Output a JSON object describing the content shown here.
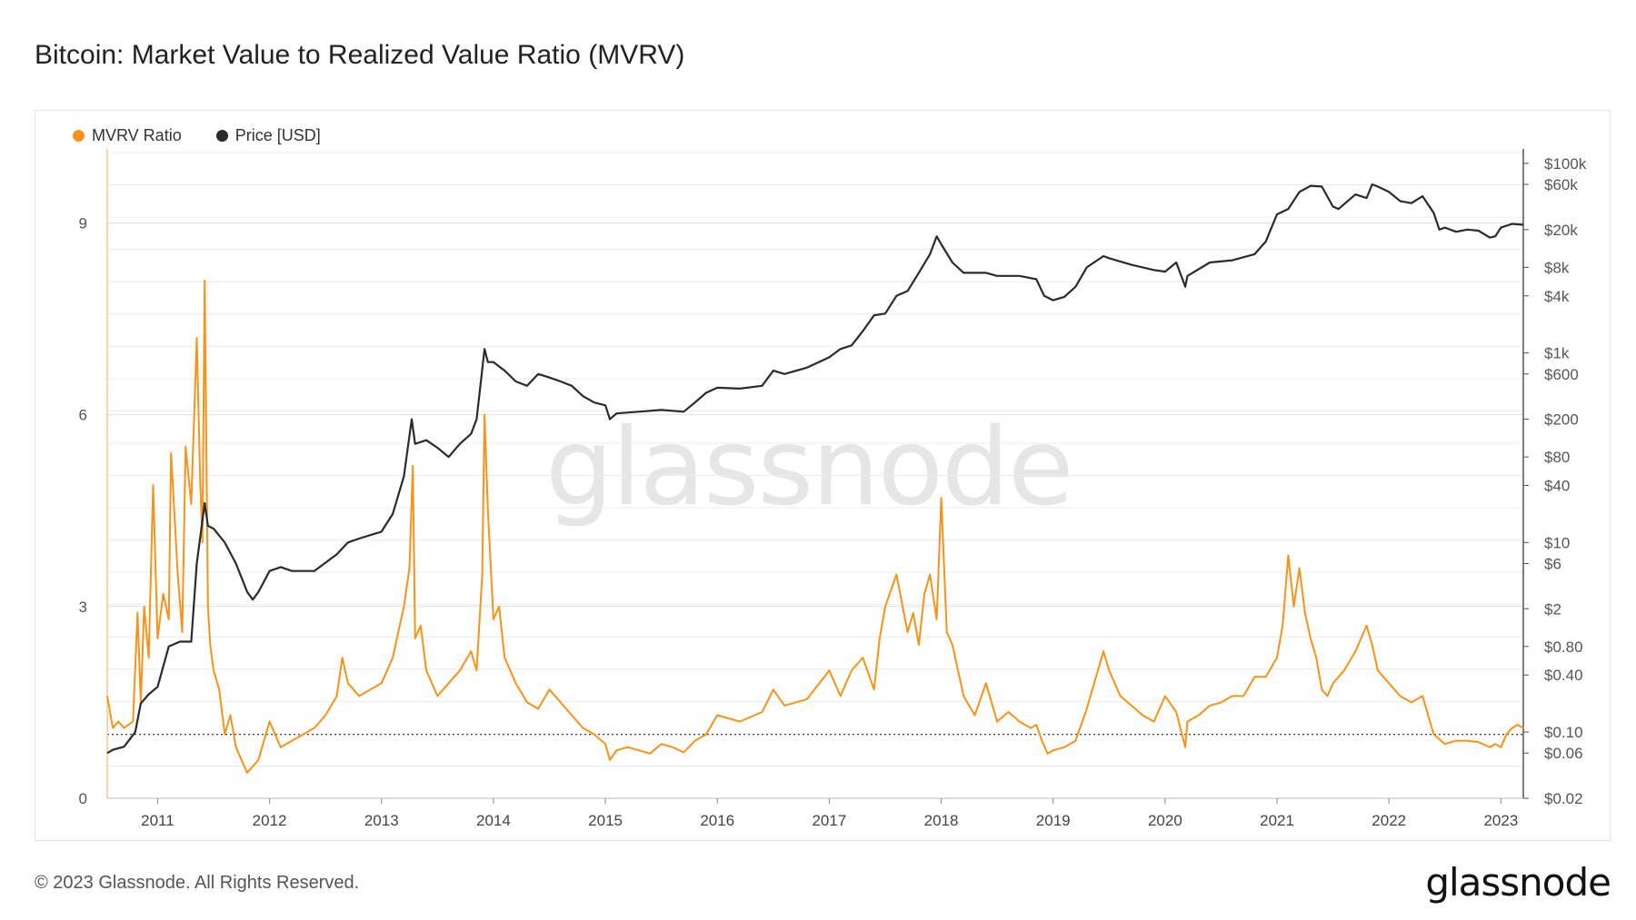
{
  "title": "Bitcoin: Market Value to Realized Value Ratio (MVRV)",
  "footer": "© 2023 Glassnode. All Rights Reserved.",
  "brand": "glassnode",
  "watermark": "glassnode",
  "colors": {
    "mvrv": "#f7931a",
    "price": "#2b2b2b",
    "grid": "#ececec",
    "axis": "#555555"
  },
  "chart_data": {
    "type": "line",
    "title": "Bitcoin: Market Value to Realized Value Ratio (MVRV)",
    "x_range": [
      2010.55,
      2023.2
    ],
    "x_ticks": [
      2011,
      2012,
      2013,
      2014,
      2015,
      2016,
      2017,
      2018,
      2019,
      2020,
      2021,
      2022,
      2023
    ],
    "x_tick_labels": [
      "2011",
      "2012",
      "2013",
      "2014",
      "2015",
      "2016",
      "2017",
      "2018",
      "2019",
      "2020",
      "2021",
      "2022",
      "2023"
    ],
    "y_left": {
      "range": [
        0,
        10.1
      ],
      "ticks": [
        0,
        3,
        6,
        9
      ],
      "tick_labels": [
        "0",
        "3",
        "6",
        "9"
      ],
      "reference_line": 1
    },
    "y_right": {
      "scale": "log",
      "range": [
        0.02,
        130000
      ],
      "ticks": [
        100000,
        60000,
        20000,
        8000,
        4000,
        1000,
        600,
        200,
        80,
        40,
        10,
        6,
        2,
        0.8,
        0.4,
        0.1,
        0.06,
        0.02
      ],
      "tick_labels": [
        "$100k",
        "$60k",
        "$20k",
        "$8k",
        "$4k",
        "$1k",
        "$600",
        "$200",
        "$80",
        "$40",
        "$10",
        "$6",
        "$2",
        "$0.80",
        "$0.40",
        "$0.10",
        "$0.06",
        "$0.02"
      ]
    },
    "legend": [
      "MVRV Ratio",
      "Price [USD]"
    ],
    "legend_position": "top-left",
    "series": [
      {
        "name": "MVRV Ratio",
        "x": [
          2010.55,
          2010.6,
          2010.65,
          2010.7,
          2010.78,
          2010.82,
          2010.85,
          2010.88,
          2010.92,
          2010.96,
          2011.0,
          2011.05,
          2011.1,
          2011.12,
          2011.18,
          2011.22,
          2011.25,
          2011.3,
          2011.35,
          2011.38,
          2011.4,
          2011.42,
          2011.45,
          2011.47,
          2011.5,
          2011.55,
          2011.6,
          2011.65,
          2011.7,
          2011.75,
          2011.8,
          2011.85,
          2011.9,
          2011.95,
          2012.0,
          2012.05,
          2012.1,
          2012.2,
          2012.3,
          2012.4,
          2012.5,
          2012.6,
          2012.65,
          2012.7,
          2012.8,
          2012.9,
          2013.0,
          2013.1,
          2013.2,
          2013.25,
          2013.28,
          2013.3,
          2013.35,
          2013.4,
          2013.5,
          2013.6,
          2013.7,
          2013.8,
          2013.85,
          2013.9,
          2013.92,
          2013.95,
          2014.0,
          2014.05,
          2014.1,
          2014.2,
          2014.3,
          2014.4,
          2014.5,
          2014.6,
          2014.7,
          2014.8,
          2014.9,
          2015.0,
          2015.04,
          2015.1,
          2015.2,
          2015.3,
          2015.4,
          2015.5,
          2015.6,
          2015.7,
          2015.8,
          2015.9,
          2016.0,
          2016.2,
          2016.4,
          2016.5,
          2016.6,
          2016.8,
          2017.0,
          2017.1,
          2017.2,
          2017.3,
          2017.4,
          2017.45,
          2017.5,
          2017.6,
          2017.7,
          2017.75,
          2017.8,
          2017.85,
          2017.9,
          2017.96,
          2018.0,
          2018.05,
          2018.1,
          2018.2,
          2018.3,
          2018.4,
          2018.5,
          2018.6,
          2018.7,
          2018.8,
          2018.85,
          2018.9,
          2018.95,
          2019.0,
          2019.1,
          2019.2,
          2019.3,
          2019.45,
          2019.5,
          2019.6,
          2019.7,
          2019.8,
          2019.9,
          2020.0,
          2020.1,
          2020.18,
          2020.2,
          2020.3,
          2020.4,
          2020.5,
          2020.6,
          2020.7,
          2020.8,
          2020.9,
          2021.0,
          2021.05,
          2021.1,
          2021.15,
          2021.2,
          2021.25,
          2021.3,
          2021.35,
          2021.4,
          2021.45,
          2021.5,
          2021.6,
          2021.7,
          2021.8,
          2021.85,
          2021.9,
          2022.0,
          2022.1,
          2022.2,
          2022.3,
          2022.35,
          2022.4,
          2022.5,
          2022.6,
          2022.7,
          2022.8,
          2022.9,
          2022.95,
          2023.0,
          2023.05,
          2023.1,
          2023.15,
          2023.2
        ],
        "values": [
          1.6,
          1.1,
          1.2,
          1.1,
          1.2,
          2.9,
          1.5,
          3.0,
          2.2,
          4.9,
          2.5,
          3.2,
          2.8,
          5.4,
          3.5,
          2.6,
          5.5,
          4.6,
          7.2,
          5.0,
          4.0,
          8.1,
          3.0,
          2.4,
          2.0,
          1.7,
          1.0,
          1.3,
          0.8,
          0.6,
          0.4,
          0.5,
          0.6,
          0.9,
          1.2,
          1.0,
          0.8,
          0.9,
          1.0,
          1.1,
          1.3,
          1.6,
          2.2,
          1.8,
          1.6,
          1.7,
          1.8,
          2.2,
          3.0,
          3.6,
          5.2,
          2.5,
          2.7,
          2.0,
          1.6,
          1.8,
          2.0,
          2.3,
          2.0,
          3.5,
          6.0,
          4.5,
          2.8,
          3.0,
          2.2,
          1.8,
          1.5,
          1.4,
          1.7,
          1.5,
          1.3,
          1.1,
          1.0,
          0.85,
          0.6,
          0.75,
          0.8,
          0.75,
          0.7,
          0.85,
          0.8,
          0.72,
          0.9,
          1.0,
          1.3,
          1.2,
          1.35,
          1.7,
          1.45,
          1.55,
          2.0,
          1.6,
          2.0,
          2.2,
          1.7,
          2.5,
          3.0,
          3.5,
          2.6,
          2.9,
          2.4,
          3.2,
          3.5,
          2.8,
          4.7,
          2.6,
          2.4,
          1.6,
          1.3,
          1.8,
          1.2,
          1.35,
          1.2,
          1.1,
          1.15,
          0.9,
          0.7,
          0.75,
          0.8,
          0.9,
          1.4,
          2.3,
          2.0,
          1.6,
          1.45,
          1.3,
          1.2,
          1.6,
          1.35,
          0.8,
          1.2,
          1.3,
          1.45,
          1.5,
          1.6,
          1.6,
          1.9,
          1.9,
          2.2,
          2.7,
          3.8,
          3.0,
          3.6,
          2.9,
          2.5,
          2.2,
          1.7,
          1.6,
          1.8,
          2.0,
          2.3,
          2.7,
          2.4,
          2.0,
          1.8,
          1.6,
          1.5,
          1.6,
          1.3,
          1.0,
          0.85,
          0.9,
          0.9,
          0.88,
          0.8,
          0.85,
          0.8,
          1.0,
          1.1,
          1.15,
          1.1
        ]
      },
      {
        "name": "Price [USD]",
        "x": [
          2010.55,
          2010.6,
          2010.7,
          2010.8,
          2010.85,
          2010.92,
          2011.0,
          2011.1,
          2011.2,
          2011.3,
          2011.35,
          2011.42,
          2011.45,
          2011.5,
          2011.6,
          2011.7,
          2011.8,
          2011.85,
          2011.9,
          2012.0,
          2012.1,
          2012.2,
          2012.4,
          2012.6,
          2012.7,
          2012.8,
          2013.0,
          2013.1,
          2013.2,
          2013.27,
          2013.3,
          2013.4,
          2013.5,
          2013.6,
          2013.7,
          2013.8,
          2013.85,
          2013.92,
          2013.95,
          2014.0,
          2014.1,
          2014.2,
          2014.3,
          2014.4,
          2014.5,
          2014.6,
          2014.7,
          2014.8,
          2014.9,
          2015.0,
          2015.04,
          2015.1,
          2015.3,
          2015.5,
          2015.7,
          2015.8,
          2015.9,
          2016.0,
          2016.2,
          2016.4,
          2016.5,
          2016.6,
          2016.8,
          2017.0,
          2017.1,
          2017.2,
          2017.3,
          2017.4,
          2017.5,
          2017.6,
          2017.7,
          2017.8,
          2017.9,
          2017.96,
          2018.0,
          2018.1,
          2018.2,
          2018.4,
          2018.5,
          2018.7,
          2018.85,
          2018.92,
          2019.0,
          2019.1,
          2019.2,
          2019.3,
          2019.45,
          2019.5,
          2019.7,
          2019.9,
          2020.0,
          2020.1,
          2020.18,
          2020.2,
          2020.4,
          2020.6,
          2020.8,
          2020.9,
          2021.0,
          2021.1,
          2021.2,
          2021.3,
          2021.4,
          2021.5,
          2021.55,
          2021.7,
          2021.8,
          2021.85,
          2021.9,
          2022.0,
          2022.1,
          2022.2,
          2022.3,
          2022.4,
          2022.45,
          2022.5,
          2022.6,
          2022.7,
          2022.8,
          2022.9,
          2022.95,
          2023.0,
          2023.1,
          2023.2
        ],
        "values": [
          0.06,
          0.065,
          0.07,
          0.1,
          0.2,
          0.25,
          0.3,
          0.8,
          0.9,
          0.9,
          6,
          26,
          15,
          14,
          10,
          6,
          3,
          2.5,
          3,
          5,
          5.5,
          5,
          5,
          7.5,
          10,
          11,
          13,
          20,
          50,
          200,
          110,
          120,
          100,
          80,
          110,
          140,
          200,
          1100,
          800,
          800,
          650,
          500,
          450,
          600,
          550,
          500,
          450,
          350,
          300,
          280,
          200,
          230,
          240,
          250,
          240,
          300,
          380,
          430,
          420,
          450,
          650,
          600,
          700,
          900,
          1100,
          1200,
          1700,
          2500,
          2600,
          4000,
          4500,
          7000,
          11000,
          17000,
          14000,
          9000,
          7000,
          7000,
          6500,
          6500,
          6000,
          4000,
          3600,
          3900,
          5000,
          8000,
          10500,
          10000,
          8500,
          7500,
          7200,
          9000,
          5000,
          6500,
          9000,
          9500,
          11000,
          15000,
          29000,
          33000,
          50000,
          58000,
          57000,
          35000,
          33000,
          47000,
          43000,
          60000,
          57000,
          50000,
          40000,
          38000,
          45000,
          30000,
          20000,
          21000,
          19000,
          20000,
          19500,
          16500,
          17000,
          21000,
          23000,
          22500
        ]
      }
    ]
  }
}
